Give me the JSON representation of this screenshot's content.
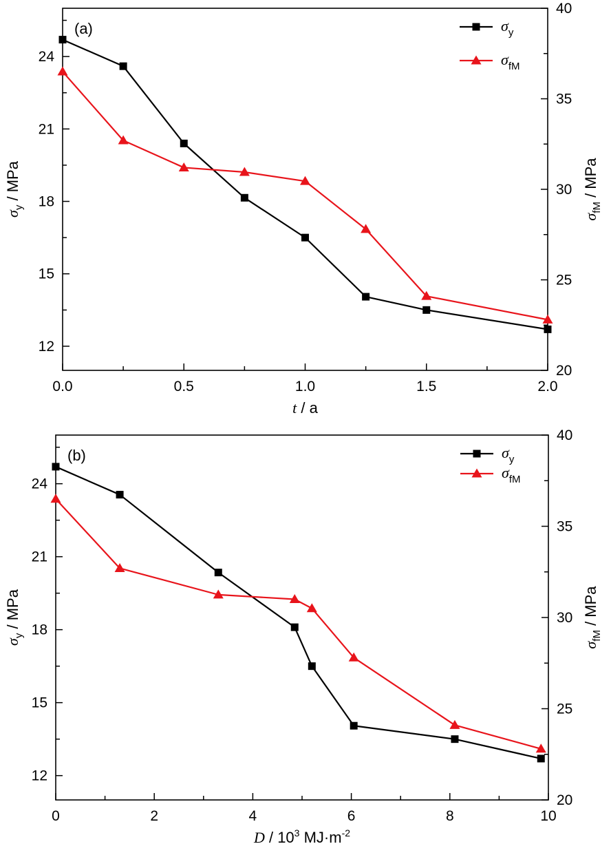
{
  "colors": {
    "sigma_y": "#000000",
    "sigma_fM": "#e8141b",
    "axis": "#000000"
  },
  "chart_data": [
    {
      "type": "line",
      "panel_label": "(a)",
      "xlabel": {
        "var": "t",
        "unit": " / a"
      },
      "ylabel_left": {
        "sym": "σ",
        "sub": "y",
        "unit": " / MPa"
      },
      "ylabel_right": {
        "sym": "σ",
        "sub": "fM",
        "unit": " / MPa"
      },
      "xlim": [
        0,
        2
      ],
      "ylim_left": [
        11,
        26
      ],
      "ylim_right": [
        20,
        40
      ],
      "xticks": [
        0,
        0.5,
        1,
        1.5,
        2
      ],
      "xtick_labels": [
        "0.0",
        "0.5",
        "1.0",
        "1.5",
        "2.0"
      ],
      "yticks_left": [
        12,
        15,
        18,
        21,
        24
      ],
      "yticks_right": [
        20,
        25,
        30,
        35,
        40
      ],
      "series": [
        {
          "name": "σ_y",
          "legend_sym": "σ",
          "legend_sub": "y",
          "axis": "left",
          "marker": "square",
          "color": "#000000",
          "x": [
            0,
            0.25,
            0.5,
            0.75,
            1.0,
            1.25,
            1.5,
            2.0
          ],
          "y": [
            24.7,
            23.6,
            20.4,
            18.15,
            16.5,
            14.05,
            13.5,
            12.7
          ]
        },
        {
          "name": "σ_fM",
          "legend_sym": "σ",
          "legend_sub": "fM",
          "axis": "right",
          "marker": "triangle",
          "color": "#e8141b",
          "x": [
            0,
            0.25,
            0.5,
            0.75,
            1.0,
            1.25,
            1.5,
            2.0
          ],
          "y": [
            36.5,
            32.7,
            31.2,
            30.95,
            30.45,
            27.8,
            24.1,
            22.8
          ]
        }
      ]
    },
    {
      "type": "line",
      "panel_label": "(b)",
      "xlabel": {
        "var": "D",
        "unit": " / 10",
        "sup": "3",
        "unit2": " MJ·m",
        "sup2": "-2"
      },
      "ylabel_left": {
        "sym": "σ",
        "sub": "y",
        "unit": " / MPa"
      },
      "ylabel_right": {
        "sym": "σ",
        "sub": "fM",
        "unit": " / MPa"
      },
      "xlim": [
        0,
        10
      ],
      "ylim_left": [
        11,
        26
      ],
      "ylim_right": [
        20,
        40
      ],
      "xticks": [
        0,
        2,
        4,
        6,
        8,
        10
      ],
      "xtick_labels": [
        "0",
        "2",
        "4",
        "6",
        "8",
        "10"
      ],
      "yticks_left": [
        12,
        15,
        18,
        21,
        24
      ],
      "yticks_right": [
        20,
        25,
        30,
        35,
        40
      ],
      "series": [
        {
          "name": "σ_y",
          "legend_sym": "σ",
          "legend_sub": "y",
          "axis": "left",
          "marker": "square",
          "color": "#000000",
          "x": [
            0,
            1.3,
            3.3,
            4.85,
            5.2,
            6.05,
            8.1,
            9.85
          ],
          "y": [
            24.7,
            23.55,
            20.35,
            18.1,
            16.5,
            14.05,
            13.5,
            12.7
          ]
        },
        {
          "name": "σ_fM",
          "legend_sym": "σ",
          "legend_sub": "fM",
          "axis": "right",
          "marker": "triangle",
          "color": "#e8141b",
          "x": [
            0,
            1.3,
            3.3,
            4.85,
            5.2,
            6.05,
            8.1,
            9.85
          ],
          "y": [
            36.5,
            32.7,
            31.25,
            31.0,
            30.5,
            27.8,
            24.1,
            22.8
          ]
        }
      ]
    }
  ]
}
